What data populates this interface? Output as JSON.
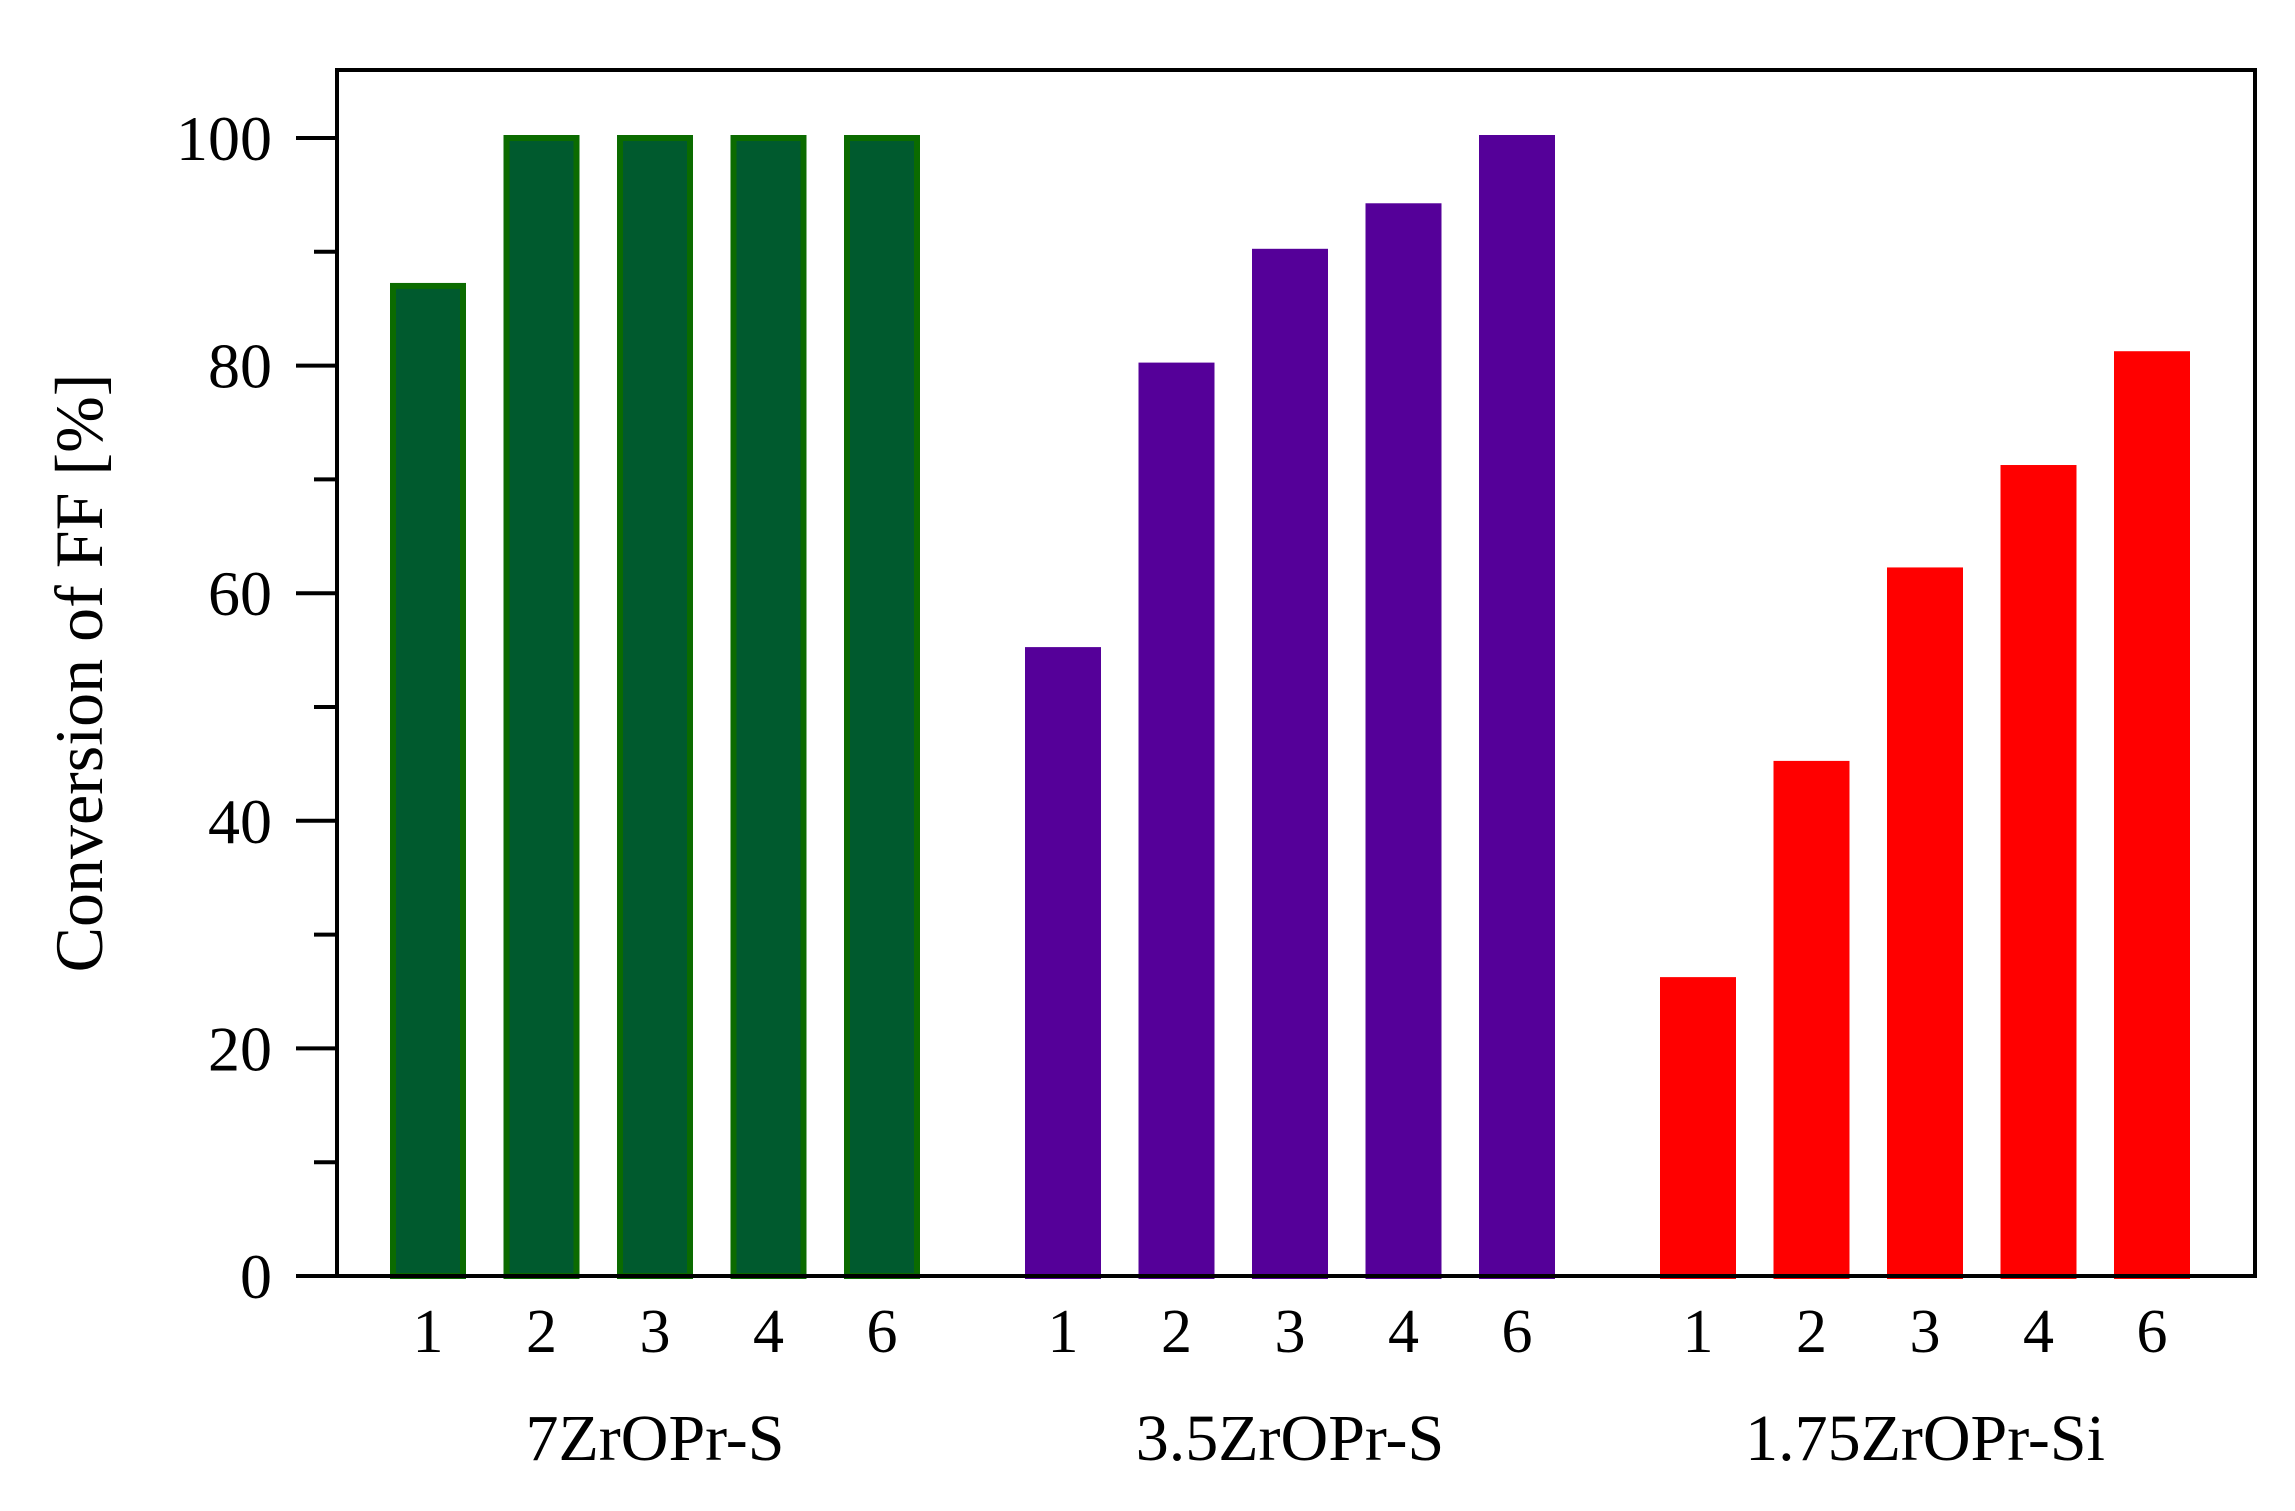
{
  "chart_data": {
    "type": "bar",
    "title": "",
    "xlabel": "",
    "ylabel": "Conversion of FF [%]",
    "ylim": [
      0,
      105
    ],
    "yticks": [
      0,
      20,
      40,
      60,
      80,
      100
    ],
    "grid": false,
    "legend": "none",
    "groups": [
      {
        "name": "7ZrOPr-S",
        "color": "#005a2e",
        "outline": "#0b6b00",
        "categories": [
          "1",
          "2",
          "3",
          "4",
          "6"
        ],
        "values": [
          87,
          100,
          100,
          100,
          100
        ]
      },
      {
        "name": "3.5ZrOPr-S",
        "color": "#550099",
        "outline": "#550099",
        "categories": [
          "1",
          "2",
          "3",
          "4",
          "6"
        ],
        "values": [
          55,
          80,
          90,
          94,
          100
        ]
      },
      {
        "name": "1.75ZrOPr-Si",
        "color": "#ff0000",
        "outline": "#ff0000",
        "categories": [
          "1",
          "2",
          "3",
          "4",
          "6"
        ],
        "values": [
          26,
          45,
          62,
          71,
          81
        ]
      }
    ]
  }
}
